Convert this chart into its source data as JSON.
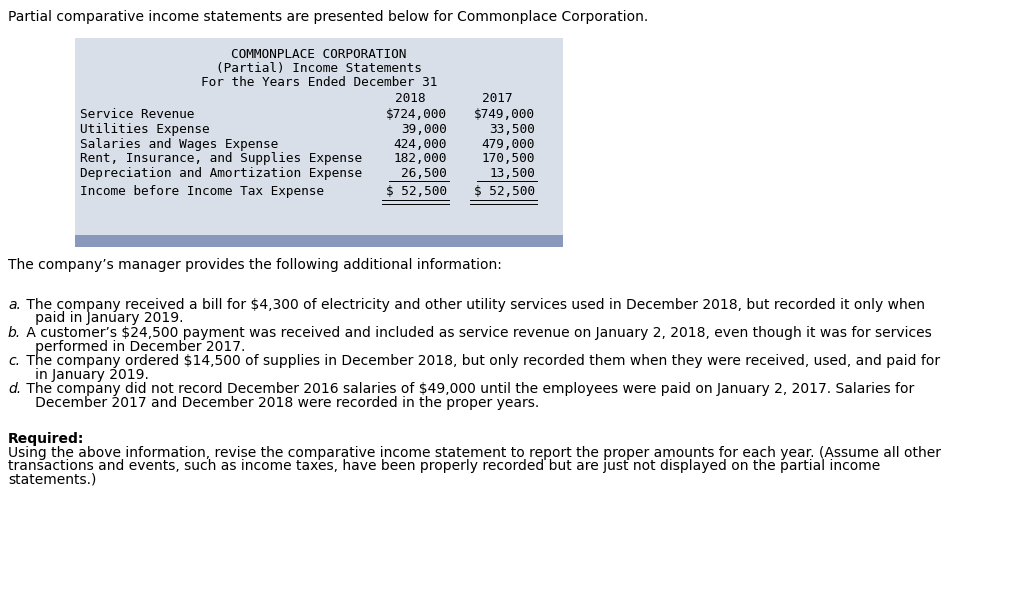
{
  "bg_color": "#ffffff",
  "intro_text": "Partial comparative income statements are presented below for Commonplace Corporation.",
  "table_header_lines": [
    "COMMONPLACE CORPORATION",
    "(Partial) Income Statements",
    "For the Years Ended December 31"
  ],
  "col_headers": [
    "2018",
    "2017"
  ],
  "rows": [
    {
      "label": "Service Revenue",
      "val2018": "$724,000",
      "val2017": "$749,000",
      "underline": false
    },
    {
      "label": "Utilities Expense",
      "val2018": "39,000",
      "val2017": "33,500",
      "underline": false
    },
    {
      "label": "Salaries and Wages Expense",
      "val2018": "424,000",
      "val2017": "479,000",
      "underline": false
    },
    {
      "label": "Rent, Insurance, and Supplies Expense",
      "val2018": "182,000",
      "val2017": "170,500",
      "underline": false
    },
    {
      "label": "Depreciation and Amortization Expense",
      "val2018": "26,500",
      "val2017": "13,500",
      "underline": true
    }
  ],
  "total_row": {
    "label": "Income before Income Tax Expense",
    "val2018": "$ 52,500",
    "val2017": "$ 52,500",
    "double_underline": true
  },
  "table_bg": "#d9dfe8",
  "table_border_bottom_color": "#8899bb",
  "additional_info_text": "The company’s manager provides the following additional information:",
  "items": [
    {
      "letter": "a.",
      "text_line1": " The company received a bill for $4,300 of electricity and other utility services used in December 2018, but recorded it only when",
      "text_line2": "   paid in January 2019."
    },
    {
      "letter": "b.",
      "text_line1": " A customer’s $24,500 payment was received and included as service revenue on January 2, 2018, even though it was for services",
      "text_line2": "   performed in December 2017."
    },
    {
      "letter": "c.",
      "text_line1": " The company ordered $14,500 of supplies in December 2018, but only recorded them when they were received, used, and paid for",
      "text_line2": "   in January 2019."
    },
    {
      "letter": "d.",
      "text_line1": " The company did not record December 2016 salaries of $49,000 until the employees were paid on January 2, 2017. Salaries for",
      "text_line2": "   December 2017 and December 2018 were recorded in the proper years."
    }
  ],
  "required_label": "Required:",
  "required_text_lines": [
    "Using the above information, revise the comparative income statement to report the proper amounts for each year. (Assume all other",
    "transactions and events, such as income taxes, have been properly recorded but are just not displayed on the partial income",
    "statements.)"
  ],
  "font_size_table": 9.2,
  "font_size_body": 10.0,
  "text_color": "#000000"
}
